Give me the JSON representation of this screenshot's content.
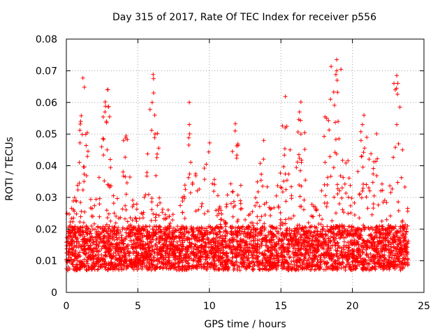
{
  "chart_data": {
    "type": "scatter",
    "title": "Day 315 of 2017, Rate Of TEC Index for receiver p556",
    "xlabel": "GPS time / hours",
    "ylabel": "ROTI / TECUs",
    "xlim": [
      0,
      25
    ],
    "ylim": [
      0,
      0.08
    ],
    "x_ticks": [
      0,
      5,
      10,
      15,
      20,
      25
    ],
    "y_ticks": [
      0,
      0.01,
      0.02,
      0.03,
      0.04,
      0.05,
      0.06,
      0.07,
      0.08
    ],
    "x_tick_labels": [
      "0",
      "5",
      "10",
      "15",
      "20",
      "25"
    ],
    "y_tick_labels": [
      "0",
      "0.01",
      "0.02",
      "0.03",
      "0.04",
      "0.05",
      "0.06",
      "0.07",
      "0.08"
    ],
    "grid": true,
    "marker": "+",
    "marker_color": "#ff0000",
    "series": [
      {
        "name": "ROTI",
        "description": "dense scatter spanning 0-24 h; bulk 0.005-0.02 TECU with spikes",
        "x_range": [
          0,
          23.9
        ],
        "baseline_range": [
          0.004,
          0.02
        ],
        "outliers": [
          {
            "x": 1.0,
            "y": 0.054
          },
          {
            "x": 2.7,
            "y": 0.057
          },
          {
            "x": 2.8,
            "y": 0.054
          },
          {
            "x": 2.9,
            "y": 0.064
          },
          {
            "x": 4.0,
            "y": 0.048
          },
          {
            "x": 6.0,
            "y": 0.06
          },
          {
            "x": 6.1,
            "y": 0.063
          },
          {
            "x": 6.1,
            "y": 0.0675
          },
          {
            "x": 6.2,
            "y": 0.05
          },
          {
            "x": 8.6,
            "y": 0.06
          },
          {
            "x": 8.6,
            "y": 0.053
          },
          {
            "x": 11.8,
            "y": 0.051
          },
          {
            "x": 13.8,
            "y": 0.048
          },
          {
            "x": 15.3,
            "y": 0.052
          },
          {
            "x": 16.3,
            "y": 0.057
          },
          {
            "x": 16.4,
            "y": 0.05
          },
          {
            "x": 18.2,
            "y": 0.055
          },
          {
            "x": 18.9,
            "y": 0.0735
          },
          {
            "x": 18.9,
            "y": 0.07
          },
          {
            "x": 19.0,
            "y": 0.054
          },
          {
            "x": 20.7,
            "y": 0.053
          },
          {
            "x": 20.6,
            "y": 0.048
          },
          {
            "x": 22.9,
            "y": 0.066
          },
          {
            "x": 23.1,
            "y": 0.0685
          },
          {
            "x": 23.0,
            "y": 0.064
          },
          {
            "x": 23.1,
            "y": 0.053
          },
          {
            "x": 23.5,
            "y": 0.045
          }
        ]
      }
    ]
  }
}
